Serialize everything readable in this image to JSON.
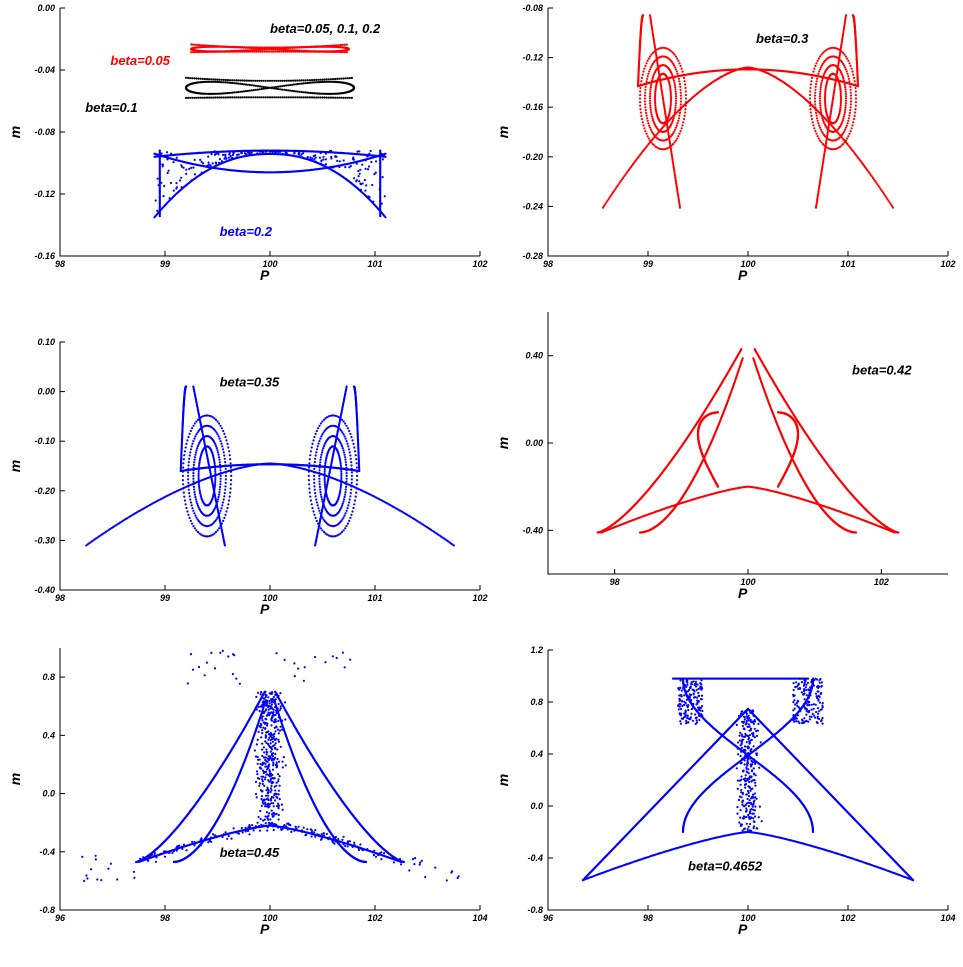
{
  "chart_data": [
    {
      "type": "scatter",
      "xlabel": "P",
      "ylabel": "m",
      "xlim": [
        98,
        102
      ],
      "ylim": [
        -0.16,
        0.0
      ],
      "xticks": [
        "98",
        "99",
        "100",
        "101",
        "102"
      ],
      "yticks": [
        "0.00",
        "-0.04",
        "-0.08",
        "-0.12",
        "-0.16"
      ],
      "annotations": [
        {
          "text": "beta=0.05, 0.1, 0.2",
          "color": "#000000"
        },
        {
          "text": "beta=0.05",
          "color": "#ff0000"
        },
        {
          "text": "beta=0.1",
          "color": "#000000"
        },
        {
          "text": "beta=0.2",
          "color": "#0000ff"
        }
      ],
      "series": [
        {
          "name": "beta=0.05",
          "color": "#ff0000",
          "shape": "bowtie",
          "center": [
            100,
            -0.0265
          ],
          "width": 1.5,
          "top": -0.0235,
          "bottom": -0.0285,
          "mid": -0.0255
        },
        {
          "name": "beta=0.1",
          "color": "#000000",
          "shape": "bowtie",
          "center": [
            100,
            -0.0515
          ],
          "width": 1.6,
          "top": -0.045,
          "bottom": -0.058,
          "mid": -0.047
        },
        {
          "name": "beta=0.2",
          "color": "#0000ff",
          "shape": "wing",
          "xmin": 98.9,
          "xmax": 101.1,
          "top": -0.092,
          "bottom": -0.135,
          "inner": -0.094,
          "noise": 0.35
        }
      ]
    },
    {
      "type": "scatter",
      "xlabel": "P",
      "ylabel": "m",
      "xlim": [
        98,
        102
      ],
      "ylim": [
        -0.28,
        -0.08
      ],
      "xticks": [
        "98",
        "99",
        "100",
        "101",
        "102"
      ],
      "yticks": [
        "-0.08",
        "-0.12",
        "-0.16",
        "-0.20",
        "-0.24",
        "-0.28"
      ],
      "annotations": [
        {
          "text": "beta=0.3",
          "color": "#000000"
        }
      ],
      "series": [
        {
          "name": "beta=0.3",
          "color": "#ff0000",
          "shape": "double-wing",
          "xmin": 98.55,
          "xmax": 101.45,
          "top": -0.128,
          "bottom": -0.241,
          "spike": -0.086,
          "spike_x": 98.9,
          "shoulder": -0.143
        }
      ]
    },
    {
      "type": "scatter",
      "xlabel": "P",
      "ylabel": "m",
      "xlim": [
        98,
        102
      ],
      "ylim": [
        -0.4,
        0.1
      ],
      "xticks": [
        "98",
        "99",
        "100",
        "101",
        "102"
      ],
      "yticks": [
        "0.10",
        "0.00",
        "-0.10",
        "-0.20",
        "-0.30",
        "-0.40"
      ],
      "annotations": [
        {
          "text": "beta=0.35",
          "color": "#000000"
        }
      ],
      "series": [
        {
          "name": "beta=0.35",
          "color": "#0000ff",
          "shape": "double-wing",
          "xmin": 98.25,
          "xmax": 101.75,
          "top": -0.145,
          "bottom": -0.31,
          "spike": 0.01,
          "spike_x": 99.15,
          "shoulder": -0.16
        }
      ]
    },
    {
      "type": "scatter",
      "xlabel": "P",
      "ylabel": "m",
      "xlim": [
        97,
        103
      ],
      "ylim": [
        -0.6,
        0.6
      ],
      "xticks": [
        "98",
        "100",
        "102"
      ],
      "yticks": [
        "0.40",
        "0.00",
        "-0.40"
      ],
      "annotations": [
        {
          "text": "beta=0.42",
          "color": "#000000"
        }
      ],
      "series": [
        {
          "name": "beta=0.42",
          "color": "#ff0000",
          "shape": "tri-wing",
          "xmin": 97.8,
          "xmax": 102.2,
          "top": 0.43,
          "bottom": -0.41,
          "base": -0.2,
          "inner_top": 0.14
        }
      ]
    },
    {
      "type": "scatter",
      "xlabel": "P",
      "ylabel": "m",
      "xlim": [
        96,
        104
      ],
      "ylim": [
        -0.8,
        1.0
      ],
      "xticks": [
        "96",
        "98",
        "100",
        "102",
        "104"
      ],
      "yticks": [
        "0.8",
        "0.4",
        "0.0",
        "-0.4",
        "-0.8"
      ],
      "annotations": [
        {
          "text": "beta=0.45",
          "color": "#000000"
        }
      ],
      "series": [
        {
          "name": "beta=0.45",
          "color": "#0000ff",
          "shape": "tri-chaos",
          "xmin": 97.5,
          "xmax": 102.5,
          "top": 0.7,
          "bottom": -0.47,
          "base": -0.22
        }
      ]
    },
    {
      "type": "scatter",
      "xlabel": "P",
      "ylabel": "m",
      "xlim": [
        96,
        104
      ],
      "ylim": [
        -0.8,
        1.2
      ],
      "xticks": [
        "96",
        "98",
        "100",
        "102",
        "104"
      ],
      "yticks": [
        "1.2",
        "0.8",
        "0.4",
        "0.0",
        "-0.4",
        "-0.8"
      ],
      "annotations": [
        {
          "text": "beta=0.4652",
          "color": "#000000"
        }
      ],
      "series": [
        {
          "name": "beta=0.4652",
          "color": "#0000ff",
          "shape": "hourglass",
          "xmin": 96.7,
          "xmax": 103.3,
          "top": 0.98,
          "bottom": -0.57,
          "base": -0.2
        }
      ]
    }
  ]
}
